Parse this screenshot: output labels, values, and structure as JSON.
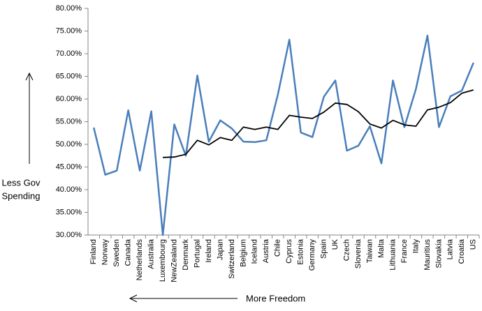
{
  "chart_data": {
    "type": "line",
    "categories": [
      "Finland",
      "Norway",
      "Sweden",
      "Canada",
      "Netherlands",
      "Australia",
      "Luxembourg",
      "NewZealand",
      "Denmark",
      "Portugal",
      "Ireland",
      "Japan",
      "Switzerland",
      "Belgium",
      "Iceland",
      "Austria",
      "Chile",
      "Cyprus",
      "Estonia",
      "Germany",
      "Spain",
      "UK",
      "Czech",
      "Slovenia",
      "Taiwan",
      "Malta",
      "Lithuania",
      "France",
      "Italy",
      "Mauritius",
      "Slovakia",
      "Latvia",
      "Croatia",
      "US"
    ],
    "series": [
      {
        "color": "#4a7ebb",
        "values": [
          53.7,
          43.3,
          44.2,
          57.5,
          44.2,
          57.3,
          30.0,
          54.4,
          47.5,
          65.2,
          50.6,
          55.3,
          53.5,
          50.6,
          50.5,
          50.9,
          61.0,
          73.1,
          52.6,
          51.6,
          60.5,
          64.1,
          48.6,
          49.7,
          54.0,
          45.8,
          64.1,
          53.8,
          62.2,
          74.0,
          53.8,
          60.6,
          61.9,
          68.0
        ]
      },
      {
        "color": "#000000",
        "values": [
          null,
          null,
          null,
          null,
          null,
          null,
          47.1,
          47.2,
          47.8,
          50.9,
          49.9,
          51.5,
          50.9,
          53.8,
          53.3,
          53.8,
          53.3,
          56.4,
          56.0,
          55.7,
          57.1,
          59.1,
          58.8,
          57.2,
          54.5,
          53.6,
          55.3,
          54.3,
          54.0,
          57.6,
          58.2,
          59.2,
          61.3,
          62.0
        ]
      }
    ],
    "ylim": [
      30,
      80
    ],
    "yticks": [
      {
        "value": 30,
        "label": "30.00%"
      },
      {
        "value": 35,
        "label": "35.00%"
      },
      {
        "value": 40,
        "label": "40.00%"
      },
      {
        "value": 45,
        "label": "45.00%"
      },
      {
        "value": 50,
        "label": "50.00%"
      },
      {
        "value": 55,
        "label": "55.00%"
      },
      {
        "value": 60,
        "label": "60.00%"
      },
      {
        "value": 65,
        "label": "65.00%"
      },
      {
        "value": 70,
        "label": "70.00%"
      },
      {
        "value": 75,
        "label": "75.00%"
      },
      {
        "value": 80,
        "label": "80.00%"
      }
    ],
    "grid": false,
    "y_annotation": [
      "Less Gov",
      "Spending"
    ],
    "x_annotation": "More Freedom"
  }
}
